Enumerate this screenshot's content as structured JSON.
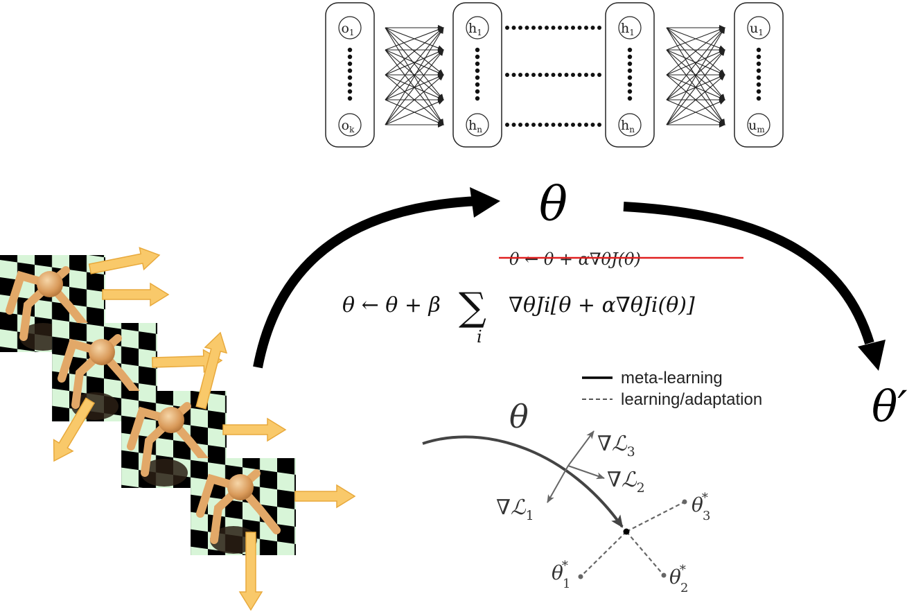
{
  "network": {
    "input_top": "o",
    "input_top_sub": "1",
    "input_bottom": "o",
    "input_bottom_sub": "k",
    "hidden_top": "h",
    "hidden_top_sub": "1",
    "hidden_bottom": "h",
    "hidden_bottom_sub": "n",
    "hidden2_top": "h",
    "hidden2_top_sub": "1",
    "hidden2_bottom": "h",
    "hidden2_bottom_sub": "n",
    "output_top": "u",
    "output_top_sub": "1",
    "output_bottom": "u",
    "output_bottom_sub": "m"
  },
  "labels": {
    "theta_top": "θ",
    "theta_prime": "θ′",
    "theta_inner": "θ"
  },
  "equations": {
    "struck": "θ ← θ + α∇θJ(θ)",
    "meta_update_lhs": "θ ← θ + β",
    "meta_update_sum": "∑",
    "meta_update_index": "i",
    "meta_update_rhs": "∇θJi[θ + α∇θJi(θ)]"
  },
  "legend": {
    "solid_label": "meta-learning",
    "dashed_label": "learning/adaptation"
  },
  "inner_diagram": {
    "grad1": "∇ℒ",
    "grad1_sub": "1",
    "grad2": "∇ℒ",
    "grad2_sub": "2",
    "grad3": "∇ℒ",
    "grad3_sub": "3",
    "opt1": "θ",
    "opt1_sub": "1",
    "opt2": "θ",
    "opt2_sub": "2",
    "opt3": "θ",
    "opt3_sub": "3",
    "star": "*"
  },
  "colors": {
    "strike": "#e02020",
    "arrow_orange": "#f9c96a",
    "checker_light": "#d8f5d8",
    "gray": "#555555"
  }
}
